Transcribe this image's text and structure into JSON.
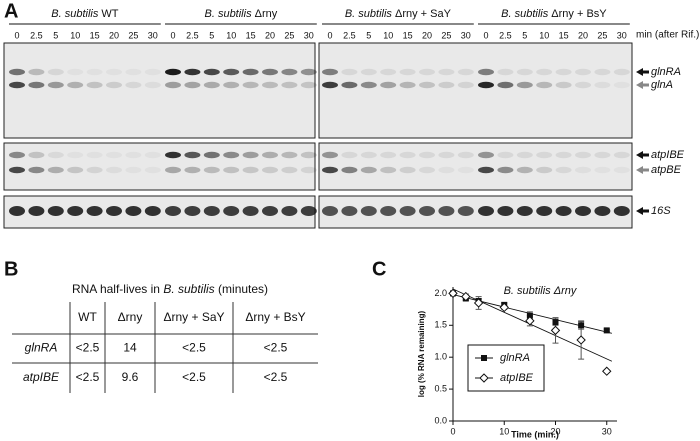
{
  "panel_a": {
    "label": "A",
    "groups": [
      {
        "species": "B. subtilis",
        "strain": "WT"
      },
      {
        "species": "B. subtilis",
        "strain": "Δrny"
      },
      {
        "species": "B. subtilis",
        "strain": "Δrny + SaY"
      },
      {
        "species": "B. subtilis",
        "strain": "Δrny + BsY"
      }
    ],
    "time_points": [
      "0",
      "2.5",
      "5",
      "10",
      "15",
      "20",
      "25",
      "30"
    ],
    "time_unit": "min (after Rif.)",
    "band_labels": [
      "glnRA",
      "glnA",
      "atpIBE",
      "atpBE",
      "16S"
    ]
  },
  "panel_b": {
    "label": "B",
    "title_start": "RNA half-lives in",
    "title_species": "B. subtilis",
    "title_end": "(minutes)",
    "columns": [
      "WT",
      "Δrny",
      "Δrny + SaY",
      "Δrny + BsY"
    ],
    "rows": [
      [
        "glnRA",
        "<2.5",
        "14",
        "<2.5",
        "<2.5"
      ],
      [
        "atpIBE",
        "<2.5",
        "9.6",
        "<2.5",
        "<2.5"
      ]
    ]
  },
  "panel_c": {
    "label": "C"
  },
  "chart_data": {
    "type": "line",
    "title": "B. subtilis Δrny",
    "x_label": "Time (min.)",
    "y_label": "log (% RNA remaining)",
    "x": [
      0,
      2.5,
      5,
      10,
      15,
      20,
      25,
      30
    ],
    "series": [
      {
        "name": "glnRA",
        "color": "#111111",
        "marker": "square",
        "values": [
          2.0,
          1.92,
          1.88,
          1.82,
          1.65,
          1.55,
          1.5,
          1.42
        ],
        "errors": [
          0.02,
          0.03,
          0.04,
          0.03,
          0.06,
          0.05,
          0.06,
          0.02
        ]
      },
      {
        "name": "atpIBE",
        "color": "#111111",
        "marker": "diamond",
        "values": [
          2.0,
          1.95,
          1.85,
          1.78,
          1.57,
          1.42,
          1.27,
          0.78
        ],
        "errors": [
          0.02,
          0.04,
          0.1,
          0.03,
          0.08,
          0.2,
          0.3,
          0.02
        ]
      }
    ],
    "xlim": [
      0,
      32
    ],
    "ylim": [
      0,
      2.1
    ],
    "xticks": [
      0,
      10,
      20,
      30
    ],
    "yticks": [
      {
        "value": 0,
        "label": "0.0"
      },
      {
        "value": 0.5,
        "label": "0.5"
      },
      {
        "value": 1,
        "label": "1.0"
      },
      {
        "value": 1.5,
        "label": "1.5"
      },
      {
        "value": 2,
        "label": "2.0"
      }
    ],
    "legend": "lower left",
    "fit_lines": true
  }
}
